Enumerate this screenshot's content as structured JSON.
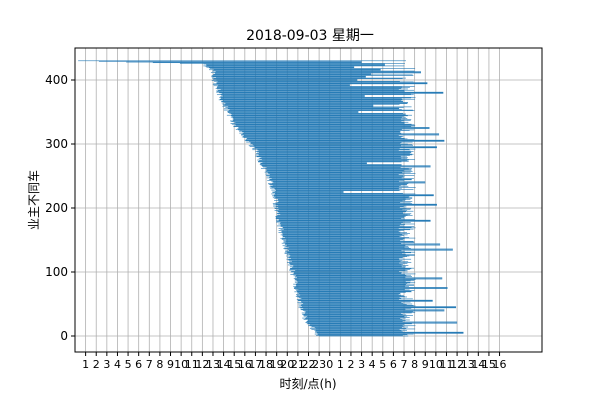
{
  "chart_data": {
    "type": "bar",
    "orientation": "horizontal-intervals",
    "title": "2018-09-03 星期一",
    "xlabel": "时刻/点(h)",
    "ylabel": "业主不同车",
    "x_tick_labels": [
      "1",
      "2",
      "3",
      "4",
      "5",
      "6",
      "7",
      "8",
      "9",
      "10",
      "11",
      "12",
      "13",
      "14",
      "15",
      "16",
      "17",
      "18",
      "19",
      "20",
      "21",
      "22",
      "23",
      "0",
      "1",
      "2",
      "3",
      "4",
      "5",
      "6",
      "7",
      "8",
      "9",
      "10",
      "11",
      "12",
      "13",
      "14",
      "15",
      "16"
    ],
    "xlim": [
      0,
      44
    ],
    "ylim": [
      -25,
      450
    ],
    "y_ticks": [
      0,
      100,
      200,
      300,
      400
    ],
    "grid": true,
    "bar_color": "#1f77b4",
    "vehicle_count": 431,
    "start_profile": [
      [
        0,
        23.0
      ],
      [
        15,
        22.2
      ],
      [
        30,
        21.6
      ],
      [
        60,
        21.1
      ],
      [
        100,
        20.5
      ],
      [
        140,
        19.8
      ],
      [
        180,
        19.2
      ],
      [
        230,
        18.7
      ],
      [
        290,
        17.0
      ],
      [
        330,
        15.0
      ],
      [
        370,
        13.8
      ],
      [
        400,
        13.1
      ],
      [
        418,
        12.9
      ],
      [
        425,
        12.0
      ],
      [
        430,
        0.0
      ]
    ],
    "typical_end_range": [
      30.5,
      32.1
    ],
    "long_tail_ends": [
      [
        5,
        36.6
      ],
      [
        21,
        36.0
      ],
      [
        40,
        34.8
      ],
      [
        45,
        35.9
      ],
      [
        55,
        33.7
      ],
      [
        75,
        35.1
      ],
      [
        90,
        34.6
      ],
      [
        135,
        35.6
      ],
      [
        143,
        34.4
      ],
      [
        180,
        33.5
      ],
      [
        205,
        34.1
      ],
      [
        220,
        33.8
      ],
      [
        240,
        33.0
      ],
      [
        265,
        33.5
      ],
      [
        295,
        34.1
      ],
      [
        305,
        34.8
      ],
      [
        315,
        34.3
      ],
      [
        325,
        33.4
      ],
      [
        380,
        34.7
      ],
      [
        395,
        33.2
      ],
      [
        412,
        32.6
      ]
    ],
    "short_ends": [
      [
        225,
        25.3
      ],
      [
        240,
        26.8
      ],
      [
        270,
        27.5
      ],
      [
        325,
        27.4
      ],
      [
        350,
        26.7
      ],
      [
        360,
        28.1
      ],
      [
        375,
        27.3
      ],
      [
        392,
        25.9
      ],
      [
        400,
        26.6
      ],
      [
        405,
        27.4
      ],
      [
        410,
        27.9
      ],
      [
        416,
        28.8
      ],
      [
        420,
        26.3
      ],
      [
        424,
        29.2
      ],
      [
        428,
        27.0
      ]
    ]
  }
}
